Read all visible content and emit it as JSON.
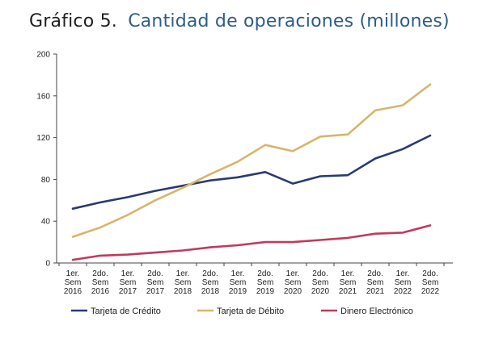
{
  "title": {
    "prefix": "Gráfico 5.",
    "main": "Cantidad de operaciones (millones)"
  },
  "chart_data": {
    "type": "line",
    "title": "Cantidad de operaciones (millones)",
    "xlabel": "",
    "ylabel": "",
    "ylim": [
      0,
      200
    ],
    "yticks": [
      0,
      40,
      80,
      120,
      160,
      200
    ],
    "grid": false,
    "legend_position": "bottom",
    "categories": [
      [
        "1er.",
        "Sem",
        "2016"
      ],
      [
        "2do.",
        "Sem",
        "2016"
      ],
      [
        "1er.",
        "Sem",
        "2017"
      ],
      [
        "2do.",
        "Sem",
        "2017"
      ],
      [
        "1er.",
        "Sem",
        "2018"
      ],
      [
        "2do.",
        "Sem",
        "2018"
      ],
      [
        "1er.",
        "Sem",
        "2019"
      ],
      [
        "2do.",
        "Sem",
        "2019"
      ],
      [
        "1er.",
        "Sem",
        "2020"
      ],
      [
        "2do.",
        "Sem",
        "2020"
      ],
      [
        "1er.",
        "Sem",
        "2021"
      ],
      [
        "2do.",
        "Sem",
        "2021"
      ],
      [
        "1er.",
        "Sem",
        "2022"
      ],
      [
        "2do.",
        "Sem",
        "2022"
      ]
    ],
    "series": [
      {
        "name": "Tarjeta de Crédito",
        "color": "#2b3a73",
        "values": [
          52,
          58,
          63,
          69,
          74,
          79,
          82,
          87,
          76,
          83,
          84,
          100,
          109,
          122
        ]
      },
      {
        "name": "Tarjeta de Débito",
        "color": "#d9b46a",
        "values": [
          25,
          34,
          46,
          60,
          72,
          85,
          97,
          113,
          107,
          121,
          123,
          146,
          151,
          171
        ]
      },
      {
        "name": "Dinero Electrónico",
        "color": "#c23a5c",
        "values": [
          3,
          7,
          8,
          10,
          12,
          15,
          17,
          20,
          20,
          22,
          24,
          28,
          29,
          36
        ]
      }
    ]
  }
}
